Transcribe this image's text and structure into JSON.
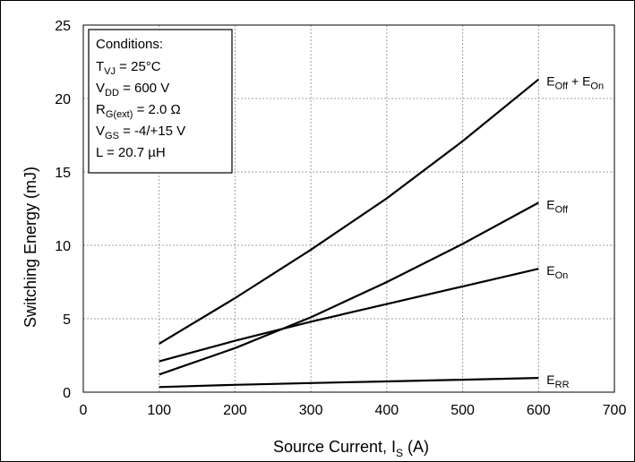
{
  "chart_data": {
    "type": "line",
    "xlabel": {
      "main": "Source Current, I",
      "sub": "S",
      "unit": " (A)"
    },
    "ylabel": "Switching Energy (mJ)",
    "xlim": [
      0,
      700
    ],
    "ylim": [
      0,
      25
    ],
    "xticks": [
      "0",
      "100",
      "200",
      "300",
      "400",
      "500",
      "600",
      "700"
    ],
    "yticks": [
      "0",
      "5",
      "10",
      "15",
      "20",
      "25"
    ],
    "grid": true,
    "x": [
      100,
      200,
      300,
      400,
      500,
      600
    ],
    "series": [
      {
        "name": "E_Off + E_On",
        "label_main": "E",
        "label_sub": "Off",
        "label_suffix": " + E",
        "label_sub2": "On",
        "values": [
          3.3,
          6.4,
          9.7,
          13.2,
          17.1,
          21.3
        ]
      },
      {
        "name": "E_Off",
        "label_main": "E",
        "label_sub": "Off",
        "values": [
          1.2,
          3.0,
          5.1,
          7.5,
          10.1,
          12.9
        ]
      },
      {
        "name": "E_On",
        "label_main": "E",
        "label_sub": "On",
        "values": [
          2.1,
          3.5,
          4.8,
          6.0,
          7.2,
          8.4
        ]
      },
      {
        "name": "E_RR",
        "label_main": "E",
        "label_sub": "RR",
        "values": [
          0.35,
          0.5,
          0.62,
          0.73,
          0.85,
          0.97
        ]
      }
    ],
    "conditions": {
      "title": "Conditions:",
      "lines": [
        {
          "main": "T",
          "sub": "VJ",
          "rest": " = 25°C"
        },
        {
          "main": "V",
          "sub": "DD",
          "rest": " = 600 V"
        },
        {
          "main": "R",
          "sub": "G(ext)",
          "rest": " = 2.0 Ω"
        },
        {
          "main": "V",
          "sub": "GS",
          "rest": " = -4/+15 V"
        },
        {
          "main": "L",
          "sub": "",
          "rest": " = 20.7 µH"
        }
      ]
    }
  }
}
